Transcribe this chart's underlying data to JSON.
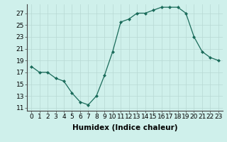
{
  "x": [
    0,
    1,
    2,
    3,
    4,
    5,
    6,
    7,
    8,
    9,
    10,
    11,
    12,
    13,
    14,
    15,
    16,
    17,
    18,
    19,
    20,
    21,
    22,
    23
  ],
  "y": [
    18,
    17,
    17,
    16,
    15.5,
    13.5,
    12,
    11.5,
    13,
    16.5,
    20.5,
    25.5,
    26,
    27,
    27,
    27.5,
    28,
    28,
    28,
    27,
    23,
    20.5,
    19.5,
    19
  ],
  "xlabel": "Humidex (Indice chaleur)",
  "xlim": [
    -0.5,
    23.5
  ],
  "ylim": [
    10.5,
    28.5
  ],
  "yticks": [
    11,
    13,
    15,
    17,
    19,
    21,
    23,
    25,
    27
  ],
  "xticks": [
    0,
    1,
    2,
    3,
    4,
    5,
    6,
    7,
    8,
    9,
    10,
    11,
    12,
    13,
    14,
    15,
    16,
    17,
    18,
    19,
    20,
    21,
    22,
    23
  ],
  "line_color": "#1a6b5a",
  "marker_color": "#1a6b5a",
  "bg_color": "#cff0eb",
  "grid_color": "#b8d8d4",
  "tick_fontsize": 6.5,
  "label_fontsize": 7.5
}
